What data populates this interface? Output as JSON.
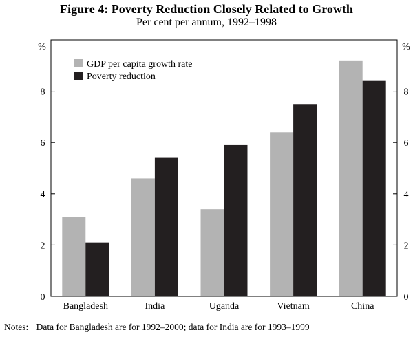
{
  "chart_data": {
    "type": "bar",
    "title": "Figure 4: Poverty Reduction Closely Related to Growth",
    "subtitle": "Per cent per annum, 1992–1998",
    "categories": [
      "Bangladesh",
      "India",
      "Uganda",
      "Vietnam",
      "China"
    ],
    "series": [
      {
        "name": "GDP per capita growth rate",
        "color": "#b3b3b3",
        "values": [
          3.1,
          4.6,
          3.4,
          6.4,
          9.2
        ]
      },
      {
        "name": "Poverty reduction",
        "color": "#231f20",
        "values": [
          2.1,
          5.4,
          5.9,
          7.5,
          8.4
        ]
      }
    ],
    "ylabel_left": "%",
    "ylabel_right": "%",
    "ylim": [
      0,
      10
    ],
    "yticks": [
      0,
      2,
      4,
      6,
      8
    ],
    "grid": false,
    "legend_position": "top-left"
  },
  "notes": {
    "label": "Notes:",
    "text": "Data for Bangladesh are for 1992–2000; data for India are for 1993–1999"
  }
}
